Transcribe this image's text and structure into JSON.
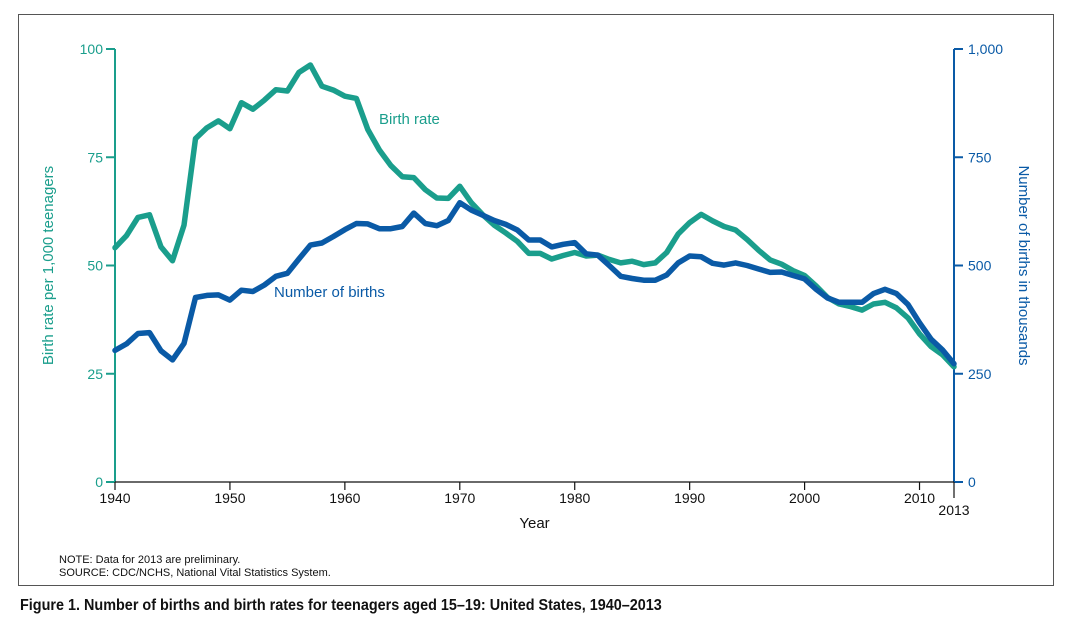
{
  "colors": {
    "birth_rate": "#1a9e8c",
    "number_of_births": "#0a5aa6"
  },
  "note": "NOTE: Data for 2013 are preliminary.",
  "source": "SOURCE: CDC/NCHS, National Vital Statistics System.",
  "caption": "Figure 1. Number of births and birth rates for teenagers aged 15–19: United States, 1940–2013",
  "chart_data": {
    "type": "line",
    "title": "",
    "xlabel": "Year",
    "ylabel_left": "Birth rate per 1,000 teenagers",
    "ylabel_right": "Number of births in thousands",
    "xlim": [
      1940,
      2013
    ],
    "ylim_left": [
      0,
      100
    ],
    "ylim_right": [
      0,
      1000
    ],
    "x_ticks": [
      1940,
      1950,
      1960,
      1970,
      1980,
      1990,
      2000,
      2010,
      2013
    ],
    "x_tick_labels": [
      "1940",
      "1950",
      "1960",
      "1970",
      "1980",
      "1990",
      "2000",
      "2010",
      "2013"
    ],
    "y_left_ticks": [
      0,
      25,
      50,
      75,
      100
    ],
    "y_left_tick_labels": [
      "0",
      "25",
      "50",
      "75",
      "100"
    ],
    "y_right_ticks": [
      0,
      250,
      500,
      750,
      1000
    ],
    "y_right_tick_labels": [
      "0",
      "250",
      "500",
      "750",
      "1,000"
    ],
    "grid": false,
    "x": [
      1940,
      1941,
      1942,
      1943,
      1944,
      1945,
      1946,
      1947,
      1948,
      1949,
      1950,
      1951,
      1952,
      1953,
      1954,
      1955,
      1956,
      1957,
      1958,
      1959,
      1960,
      1961,
      1962,
      1963,
      1964,
      1965,
      1966,
      1967,
      1968,
      1969,
      1970,
      1971,
      1972,
      1973,
      1974,
      1975,
      1976,
      1977,
      1978,
      1979,
      1980,
      1981,
      1982,
      1983,
      1984,
      1985,
      1986,
      1987,
      1988,
      1989,
      1990,
      1991,
      1992,
      1993,
      1994,
      1995,
      1996,
      1997,
      1998,
      1999,
      2000,
      2001,
      2002,
      2003,
      2004,
      2005,
      2006,
      2007,
      2008,
      2009,
      2010,
      2011,
      2012,
      2013
    ],
    "series": [
      {
        "name": "Birth rate",
        "axis": "left",
        "values": [
          54.1,
          56.9,
          61.1,
          61.7,
          54.3,
          51.1,
          59.3,
          79.3,
          81.8,
          83.4,
          81.6,
          87.6,
          86.1,
          88.2,
          90.6,
          90.3,
          94.6,
          96.3,
          91.4,
          90.5,
          89.1,
          88.6,
          81.4,
          76.7,
          73.1,
          70.5,
          70.3,
          67.5,
          65.6,
          65.5,
          68.3,
          64.5,
          61.7,
          59.3,
          57.5,
          55.6,
          52.8,
          52.8,
          51.5,
          52.3,
          53.0,
          52.2,
          52.4,
          51.4,
          50.6,
          51.0,
          50.2,
          50.6,
          53.0,
          57.3,
          59.9,
          61.8,
          60.3,
          59.0,
          58.2,
          56.0,
          53.5,
          51.3,
          50.3,
          48.8,
          47.7,
          45.3,
          42.6,
          41.1,
          40.5,
          39.7,
          41.1,
          41.5,
          40.2,
          37.9,
          34.2,
          31.3,
          29.4,
          26.6
        ]
      },
      {
        "name": "Number of births",
        "axis": "right",
        "values": [
          304,
          319,
          343,
          345,
          303,
          282,
          320,
          426,
          431,
          432,
          420,
          443,
          440,
          455,
          475,
          482,
          515,
          547,
          552,
          567,
          583,
          597,
          596,
          585,
          585,
          590,
          621,
          597,
          592,
          604,
          645,
          628,
          616,
          604,
          595,
          582,
          559,
          559,
          543,
          549,
          553,
          527,
          524,
          500,
          475,
          470,
          466,
          466,
          478,
          506,
          522,
          520,
          505,
          501,
          506,
          500,
          492,
          484,
          485,
          477,
          469,
          445,
          425,
          415,
          415,
          415,
          435,
          445,
          435,
          410,
          368,
          330,
          305,
          273
        ]
      }
    ],
    "annotations": [
      {
        "text": "Birth rate",
        "series": "Birth rate"
      },
      {
        "text": "Number of births",
        "series": "Number of births"
      }
    ]
  }
}
